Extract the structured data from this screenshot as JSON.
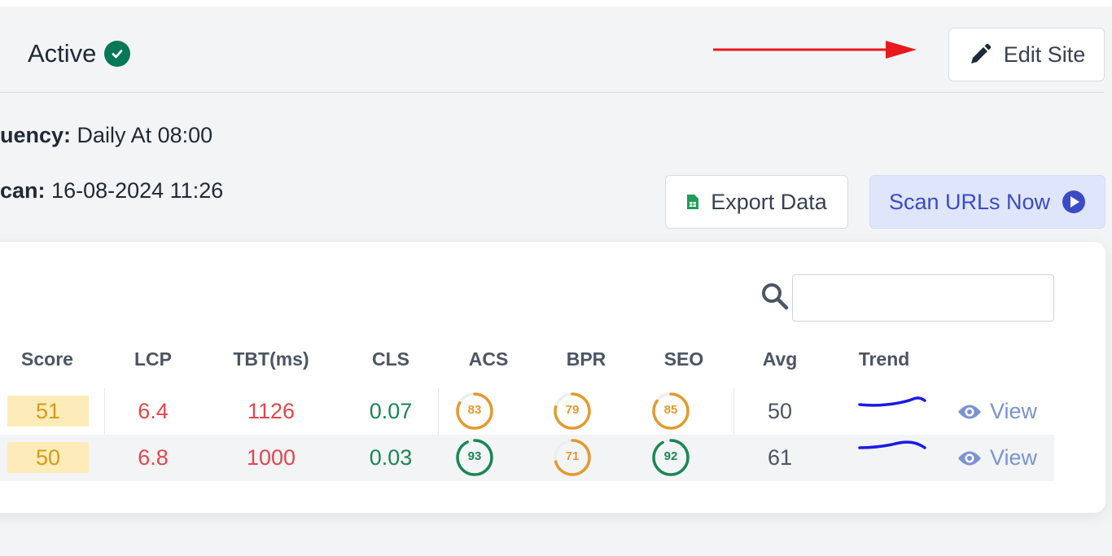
{
  "header": {
    "status_label": "Active",
    "edit_button_label": "Edit Site"
  },
  "meta": {
    "frequency_label": "uency:",
    "frequency_value": "Daily At 08:00",
    "scan_label": "can:",
    "scan_value": "16-08-2024 11:26"
  },
  "actions": {
    "export_label": "Export Data",
    "scan_label": "Scan URLs Now"
  },
  "search": {
    "value": "",
    "placeholder": ""
  },
  "table": {
    "headers": [
      "Score",
      "LCP",
      "TBT(ms)",
      "CLS",
      "ACS",
      "BPR",
      "SEO",
      "Avg",
      "Trend"
    ],
    "rows": [
      {
        "score": "51",
        "lcp": "6.4",
        "tbt": "1126",
        "cls": "0.07",
        "acs": "83",
        "bpr": "79",
        "seo": "85",
        "avg": "50",
        "view": "View"
      },
      {
        "score": "50",
        "lcp": "6.8",
        "tbt": "1000",
        "cls": "0.03",
        "acs": "93",
        "bpr": "71",
        "seo": "92",
        "avg": "61",
        "view": "View"
      }
    ]
  },
  "colors": {
    "good": "#198754",
    "average": "#e49a2e",
    "poor": "#e0474c",
    "accent": "#3b4bc8",
    "trend": "#1a1ae6",
    "annotation_arrow": "#e8191d"
  },
  "icons": [
    "check-circle-icon",
    "arrow-annotation-icon",
    "pencil-icon",
    "spreadsheet-icon",
    "play-circle-icon",
    "search-icon",
    "eye-icon"
  ]
}
